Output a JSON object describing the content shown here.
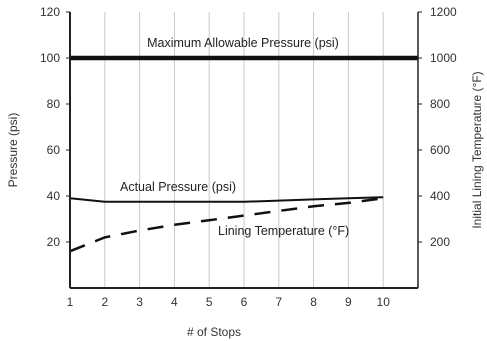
{
  "chart_data": {
    "type": "line",
    "title": "",
    "xlabel": "# of Stops",
    "ylabel": "Pressure (psi)",
    "y2label": "Initial Lining Temperature (°F)",
    "x": [
      1,
      2,
      3,
      4,
      5,
      6,
      7,
      8,
      9,
      10
    ],
    "xlim": [
      1,
      11
    ],
    "ylim": [
      0,
      120
    ],
    "y2lim": [
      0,
      1200
    ],
    "yticks": [
      20,
      40,
      60,
      80,
      100,
      120
    ],
    "y2ticks": [
      200,
      400,
      600,
      800,
      1000,
      1200
    ],
    "grid": "vertical",
    "series": [
      {
        "name": "Maximum Allowable Pressure (psi)",
        "axis": "left",
        "style": "solid-thick",
        "x": [
          1,
          11
        ],
        "values": [
          100,
          100
        ]
      },
      {
        "name": "Actual Pressure (psi)",
        "axis": "left",
        "style": "solid",
        "x": [
          1,
          2,
          3,
          4,
          5,
          6,
          7,
          8,
          9,
          10
        ],
        "values": [
          39,
          37.5,
          37.5,
          37.5,
          37.5,
          37.5,
          38,
          38.5,
          39,
          39.5
        ]
      },
      {
        "name": "Lining Temperature (°F)",
        "axis": "right",
        "style": "dashed",
        "x": [
          1,
          2,
          3,
          4,
          5,
          6,
          7,
          8,
          9,
          10
        ],
        "values": [
          160,
          220,
          250,
          275,
          295,
          315,
          335,
          355,
          370,
          390
        ]
      }
    ],
    "colors": {
      "lines": "#111111",
      "grid": "#c8c8c8",
      "axes": "#222222",
      "text": "#333333"
    }
  }
}
